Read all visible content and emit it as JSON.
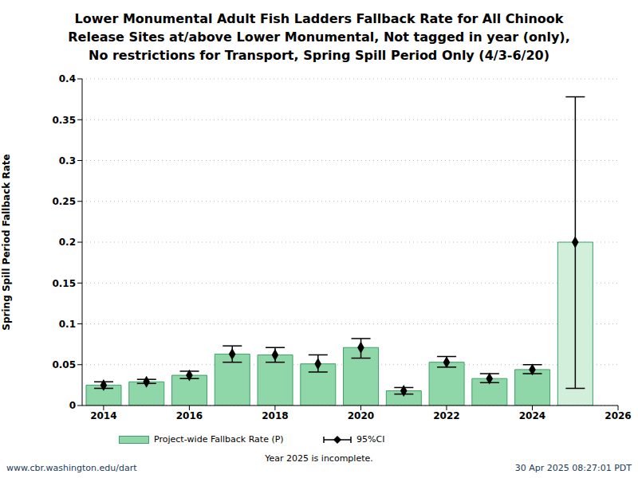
{
  "chart_data": {
    "type": "bar",
    "title": [
      "Lower Monumental Adult Fish Ladders Fallback Rate for All Chinook",
      "Release Sites at/above Lower Monumental, Not tagged in year (only),",
      "No restrictions for Transport, Spring Spill Period Only (4/3-6/20)"
    ],
    "y_label": "Spring Spill Period Fallback Rate",
    "x": [
      2014,
      2015,
      2016,
      2017,
      2018,
      2019,
      2020,
      2021,
      2022,
      2023,
      2024,
      2025
    ],
    "series": [
      {
        "name": "Project-wide Fallback Rate (P)",
        "values": [
          0.025,
          0.029,
          0.037,
          0.063,
          0.062,
          0.051,
          0.071,
          0.018,
          0.053,
          0.033,
          0.044,
          0.2
        ],
        "colors": [
          "#8fd6a8",
          "#8fd6a8",
          "#8fd6a8",
          "#8fd6a8",
          "#8fd6a8",
          "#8fd6a8",
          "#8fd6a8",
          "#8fd6a8",
          "#8fd6a8",
          "#8fd6a8",
          "#8fd6a8",
          "#d2efdc"
        ],
        "error_bars": {
          "name": "95%CI",
          "low": [
            0.021,
            0.027,
            0.033,
            0.053,
            0.053,
            0.041,
            0.058,
            0.014,
            0.047,
            0.028,
            0.039,
            0.021
          ],
          "high": [
            0.029,
            0.032,
            0.042,
            0.073,
            0.071,
            0.062,
            0.082,
            0.022,
            0.06,
            0.039,
            0.05,
            0.378
          ]
        }
      }
    ],
    "xlim": [
      2013.5,
      2026
    ],
    "xticks": [
      2014,
      2016,
      2018,
      2020,
      2022,
      2024,
      2026
    ],
    "ylim": [
      0,
      0.4
    ],
    "yticks": [
      0,
      0.05,
      0.1,
      0.15,
      0.2,
      0.25,
      0.3,
      0.35,
      0.4
    ],
    "grid": true,
    "footnote": "Year 2025 is incomplete.",
    "source": "www.cbr.washington.edu/dart",
    "timestamp": "30 Apr 2025 08:27:01 PDT"
  }
}
